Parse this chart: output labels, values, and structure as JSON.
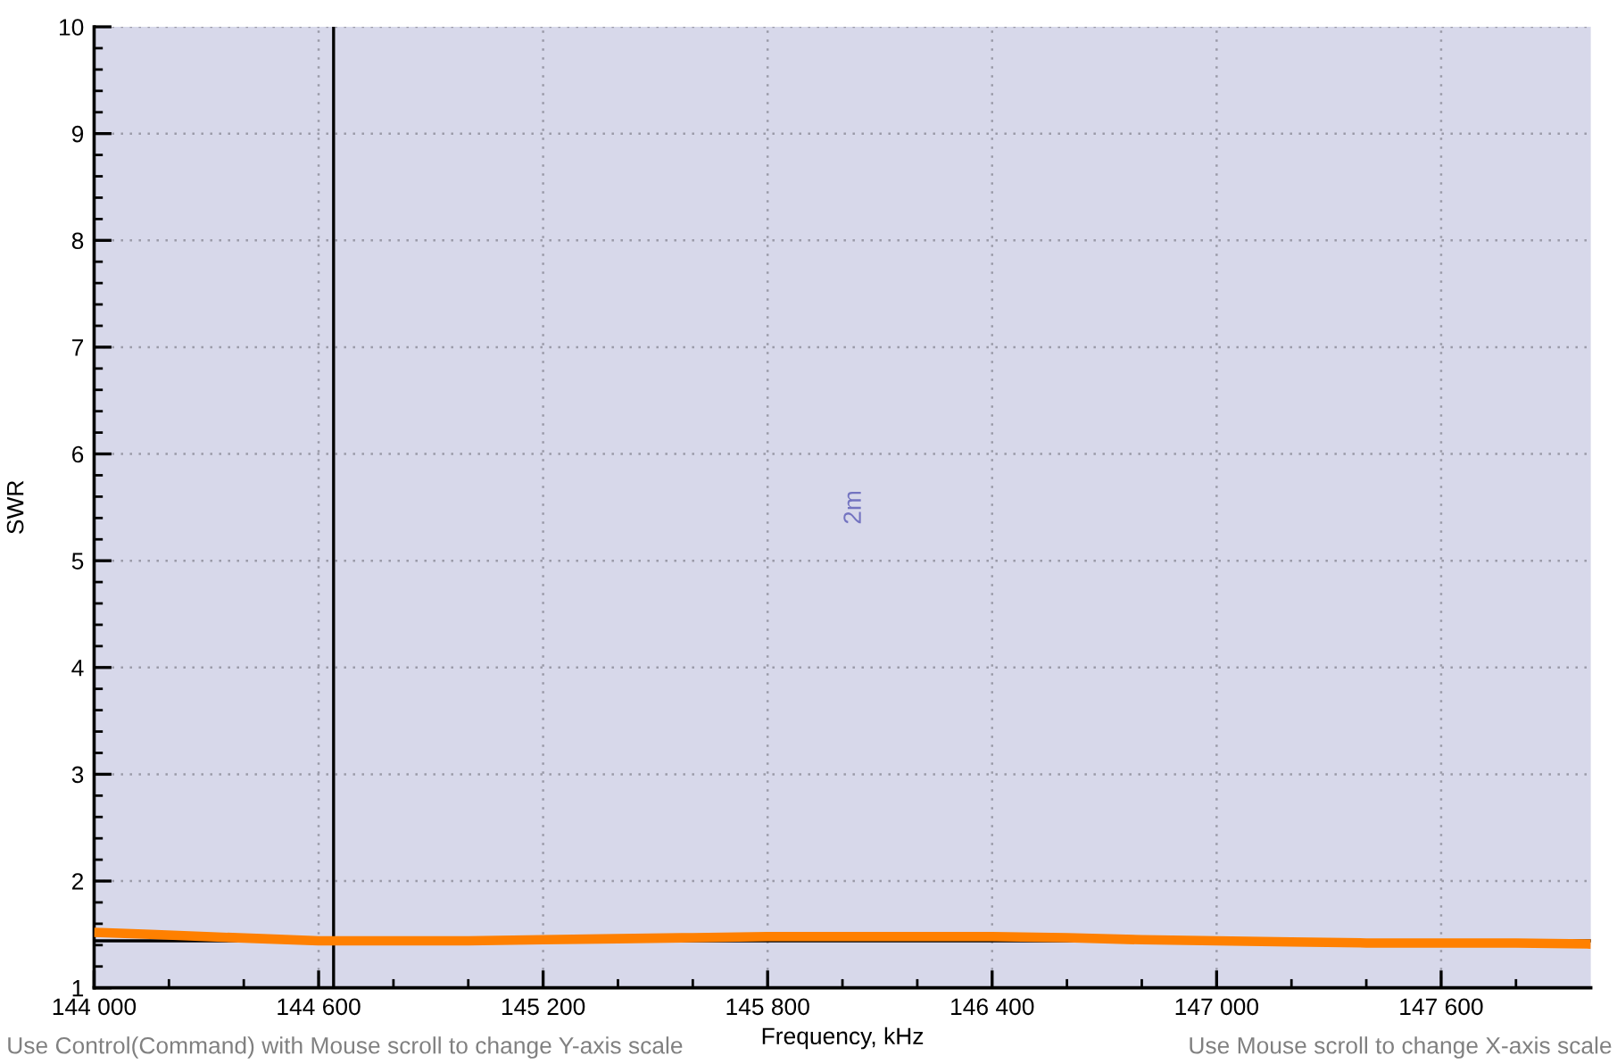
{
  "chart_data": {
    "type": "line",
    "xlabel": "Frequency, kHz",
    "ylabel": "SWR",
    "x": [
      144000,
      144150,
      144300,
      144450,
      144600,
      144800,
      145000,
      145200,
      145400,
      145600,
      145800,
      146000,
      146200,
      146400,
      146600,
      146800,
      147000,
      147200,
      147400,
      147600,
      147800,
      148000
    ],
    "series": [
      {
        "color": "#ff8000",
        "values": [
          1.52,
          1.5,
          1.48,
          1.46,
          1.44,
          1.44,
          1.44,
          1.45,
          1.46,
          1.47,
          1.48,
          1.48,
          1.48,
          1.48,
          1.47,
          1.45,
          1.44,
          1.43,
          1.42,
          1.42,
          1.42,
          1.41
        ]
      }
    ],
    "xlim": [
      144000,
      148000
    ],
    "ylim": [
      1,
      10
    ],
    "xticks": [
      {
        "value": 144000,
        "label": "144 000"
      },
      {
        "value": 144200,
        "label": null
      },
      {
        "value": 144400,
        "label": null
      },
      {
        "value": 144600,
        "label": "144 600"
      },
      {
        "value": 144800,
        "label": null
      },
      {
        "value": 145000,
        "label": null
      },
      {
        "value": 145200,
        "label": "145 200"
      },
      {
        "value": 145400,
        "label": null
      },
      {
        "value": 145600,
        "label": null
      },
      {
        "value": 145800,
        "label": "145 800"
      },
      {
        "value": 146000,
        "label": null
      },
      {
        "value": 146200,
        "label": null
      },
      {
        "value": 146400,
        "label": "146 400"
      },
      {
        "value": 146600,
        "label": null
      },
      {
        "value": 146800,
        "label": null
      },
      {
        "value": 147000,
        "label": "147 000"
      },
      {
        "value": 147200,
        "label": null
      },
      {
        "value": 147400,
        "label": null
      },
      {
        "value": 147600,
        "label": "147 600"
      },
      {
        "value": 147800,
        "label": null
      }
    ],
    "yticks": [
      1,
      {
        "value": 1.2,
        "label": null
      },
      {
        "value": 1.4,
        "label": null
      },
      {
        "value": 1.6,
        "label": null
      },
      {
        "value": 1.8,
        "label": null
      },
      2,
      {
        "value": 2.2,
        "label": null
      },
      {
        "value": 2.4,
        "label": null
      },
      {
        "value": 2.6,
        "label": null
      },
      {
        "value": 2.8,
        "label": null
      },
      3,
      {
        "value": 3.2,
        "label": null
      },
      {
        "value": 3.4,
        "label": null
      },
      {
        "value": 3.6,
        "label": null
      },
      {
        "value": 3.8,
        "label": null
      },
      4,
      {
        "value": 4.2,
        "label": null
      },
      {
        "value": 4.4,
        "label": null
      },
      {
        "value": 4.6,
        "label": null
      },
      {
        "value": 4.8,
        "label": null
      },
      5,
      {
        "value": 5.2,
        "label": null
      },
      {
        "value": 5.4,
        "label": null
      },
      {
        "value": 5.6,
        "label": null
      },
      {
        "value": 5.8,
        "label": null
      },
      6,
      {
        "value": 6.2,
        "label": null
      },
      {
        "value": 6.4,
        "label": null
      },
      {
        "value": 6.6,
        "label": null
      },
      {
        "value": 6.8,
        "label": null
      },
      7,
      {
        "value": 7.2,
        "label": null
      },
      {
        "value": 7.4,
        "label": null
      },
      {
        "value": 7.6,
        "label": null
      },
      {
        "value": 7.8,
        "label": null
      },
      8,
      {
        "value": 8.2,
        "label": null
      },
      {
        "value": 8.4,
        "label": null
      },
      {
        "value": 8.6,
        "label": null
      },
      {
        "value": 8.8,
        "label": null
      },
      9,
      {
        "value": 9.2,
        "label": null
      },
      {
        "value": 9.4,
        "label": null
      },
      {
        "value": 9.6,
        "label": null
      },
      {
        "value": 9.8,
        "label": null
      },
      10
    ],
    "ref_lines": [
      {
        "axis": "x",
        "value": 144640,
        "color": "#000000"
      },
      {
        "axis": "y",
        "value": 1.44,
        "color": "#000000"
      }
    ],
    "annotations": [
      "2m",
      "Use Control(Command) with Mouse scroll to change Y-axis scale",
      "Use Mouse scroll to change X-axis scale"
    ],
    "grid": true,
    "line_style": "solid"
  }
}
